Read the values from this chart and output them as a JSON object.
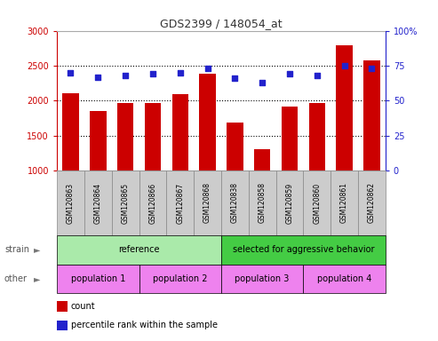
{
  "title": "GDS2399 / 148054_at",
  "samples": [
    "GSM120863",
    "GSM120864",
    "GSM120865",
    "GSM120866",
    "GSM120867",
    "GSM120868",
    "GSM120838",
    "GSM120858",
    "GSM120859",
    "GSM120860",
    "GSM120861",
    "GSM120862"
  ],
  "counts": [
    2110,
    1850,
    1970,
    1970,
    2090,
    2390,
    1680,
    1310,
    1910,
    1960,
    2790,
    2580
  ],
  "percentiles": [
    70,
    67,
    68,
    69,
    70,
    73,
    66,
    63,
    69,
    68,
    75,
    73
  ],
  "ylim_left": [
    1000,
    3000
  ],
  "ylim_right": [
    0,
    100
  ],
  "yticks_left": [
    1000,
    1500,
    2000,
    2500,
    3000
  ],
  "yticks_right": [
    0,
    25,
    50,
    75,
    100
  ],
  "bar_color": "#cc0000",
  "dot_color": "#2222cc",
  "strain_groups": [
    {
      "label": "reference",
      "start": 0,
      "end": 6,
      "color": "#aaeaaa"
    },
    {
      "label": "selected for aggressive behavior",
      "start": 6,
      "end": 12,
      "color": "#44cc44"
    }
  ],
  "other_groups": [
    {
      "label": "population 1",
      "start": 0,
      "end": 3,
      "color": "#ee82ee"
    },
    {
      "label": "population 2",
      "start": 3,
      "end": 6,
      "color": "#ee82ee"
    },
    {
      "label": "population 3",
      "start": 6,
      "end": 9,
      "color": "#ee82ee"
    },
    {
      "label": "population 4",
      "start": 9,
      "end": 12,
      "color": "#ee82ee"
    }
  ],
  "legend_items": [
    {
      "label": "count",
      "color": "#cc0000"
    },
    {
      "label": "percentile rank within the sample",
      "color": "#2222cc"
    }
  ],
  "strain_label": "strain",
  "other_label": "other",
  "left_axis_color": "#cc0000",
  "right_axis_color": "#2222cc",
  "sample_box_color": "#cccccc",
  "sample_box_edge": "#888888",
  "dotted_lines": [
    1500,
    2000,
    2500
  ],
  "bar_width": 0.6
}
